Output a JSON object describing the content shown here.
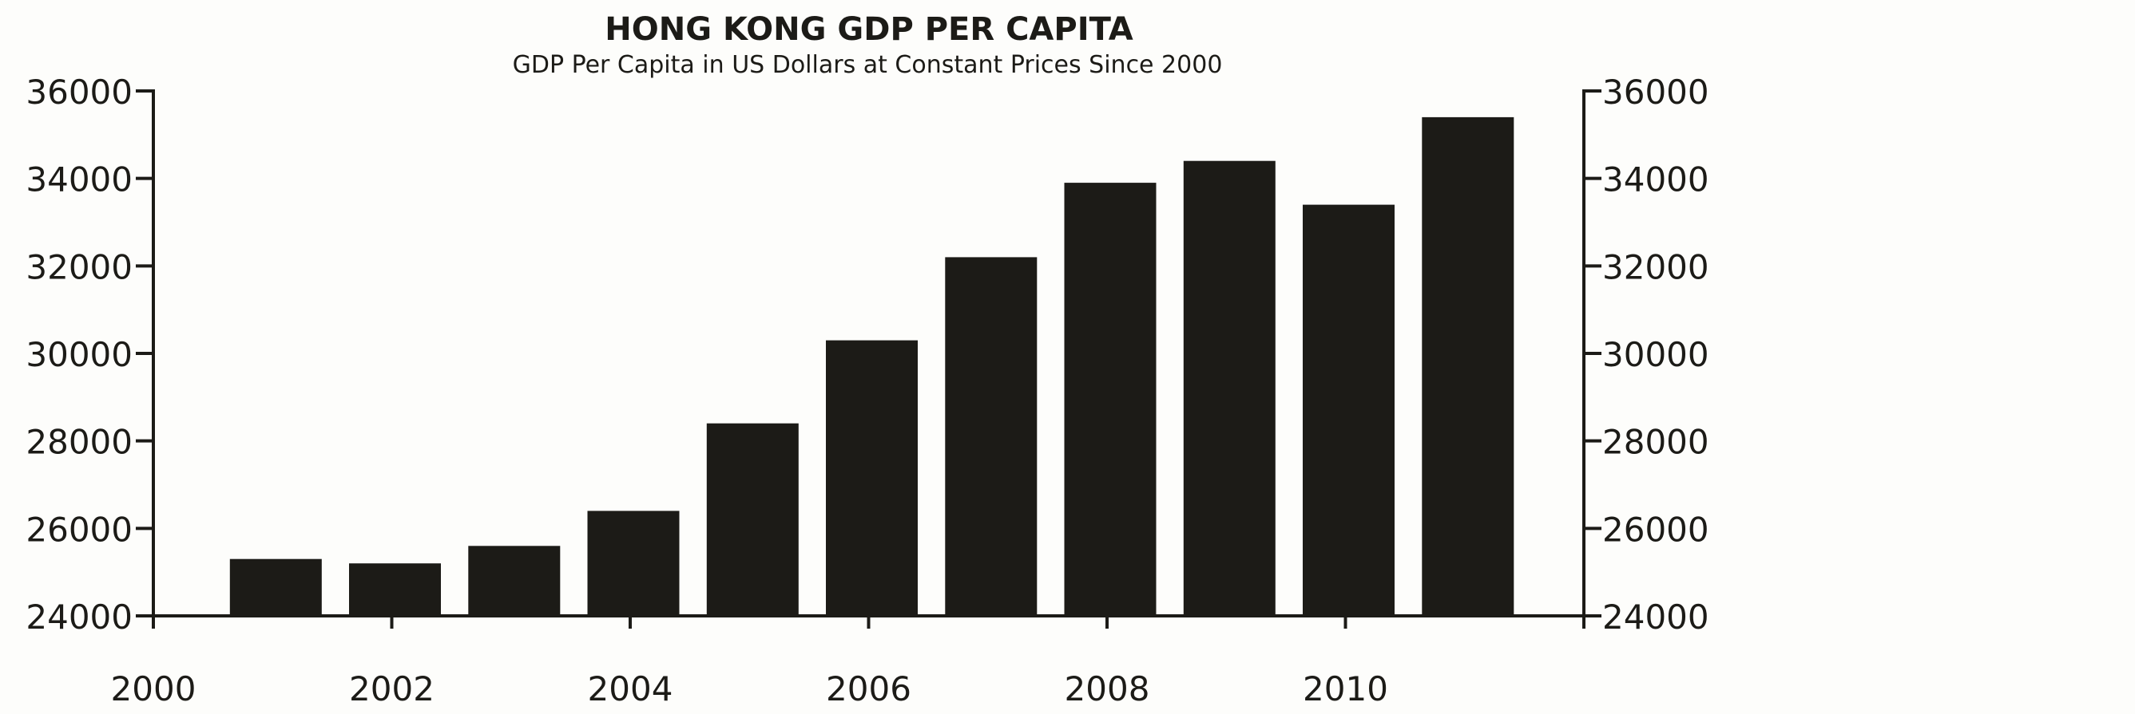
{
  "chart_data": {
    "type": "bar",
    "title": "HONG KONG GDP PER CAPITA",
    "subtitle": "GDP Per Capita in US Dollars at Constant Prices Since 2000",
    "xlabel": "",
    "ylabel": "",
    "categories": [
      2001,
      2002,
      2003,
      2004,
      2005,
      2006,
      2007,
      2008,
      2009,
      2010,
      2011
    ],
    "values": [
      25300,
      25200,
      25600,
      26400,
      28400,
      30300,
      32200,
      33900,
      34400,
      33400,
      35400
    ],
    "xlim": [
      2000,
      2012
    ],
    "ylim": [
      24000,
      36000
    ],
    "x_ticks": [
      2000,
      2002,
      2004,
      2006,
      2008,
      2010
    ],
    "x_tick_labels": [
      "2000",
      "2002",
      "2004",
      "2006",
      "2008",
      "2010"
    ],
    "y_ticks": [
      24000,
      26000,
      28000,
      30000,
      32000,
      34000,
      36000
    ],
    "y_tick_labels_left": [
      "24000",
      "26000",
      "28000",
      "30000",
      "32000",
      "34000",
      "36000"
    ],
    "y_tick_labels_right": [
      "24000",
      "26000",
      "28000",
      "30000",
      "32000",
      "34000",
      "36000"
    ],
    "grid": false,
    "legend": "none",
    "secondary_y_axis": true,
    "bar_color": "#1c1b17",
    "background_color": "#fdfdfb"
  }
}
